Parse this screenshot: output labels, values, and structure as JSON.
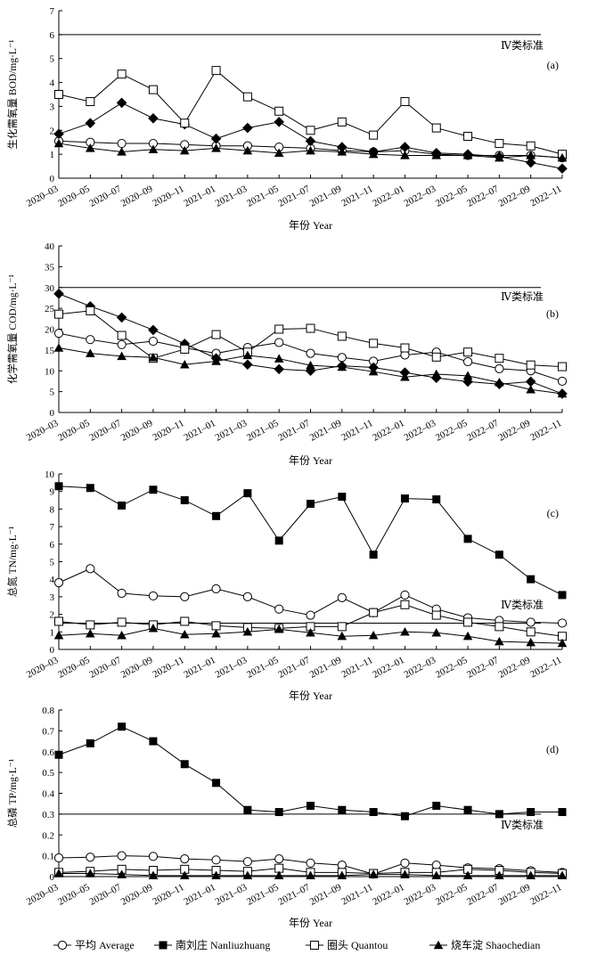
{
  "x_tick_labels": [
    "2020–03",
    "2020–05",
    "2020–07",
    "2020–09",
    "2020–11",
    "2021–01",
    "2021–03",
    "2021–05",
    "2021–07",
    "2021–09",
    "2021–11",
    "2022–01",
    "2022–03",
    "2022–05",
    "2022–07",
    "2022–09",
    "2022–11"
  ],
  "legend": [
    {
      "label": "平均 Average",
      "marker": "circle-open"
    },
    {
      "label": "南刘庄 Nanliuzhuang",
      "marker": "square-filled"
    },
    {
      "label": "圈头 Quantou",
      "marker": "square-open"
    },
    {
      "label": "烧车淀 Shaochedian",
      "marker": "triangle-filled"
    }
  ],
  "chart_data": [
    {
      "type": "line",
      "panel": "(a)",
      "xlabel": "年份 Year",
      "ylabel": "生化需氧量 BOD/mg·L⁻¹",
      "ylim": [
        0,
        7
      ],
      "yticks": [
        0,
        1,
        2,
        3,
        4,
        5,
        6,
        7
      ],
      "x": [
        "2020–03",
        "2020–05",
        "2020–07",
        "2020–09",
        "2020–11",
        "2021–01",
        "2021–03",
        "2021–05",
        "2021–07",
        "2021–09",
        "2021–11",
        "2022–01",
        "2022–03",
        "2022–05",
        "2022–07",
        "2022–09",
        "2022–11"
      ],
      "standard": {
        "label": "Ⅳ类标准",
        "value": 6
      },
      "series": [
        {
          "name": "平均 Average",
          "values": [
            1.55,
            1.5,
            1.45,
            1.45,
            1.4,
            1.35,
            1.35,
            1.3,
            1.25,
            1.15,
            1.1,
            1.15,
            1.0,
            0.95,
            0.95,
            0.95,
            0.85
          ]
        },
        {
          "name": "南刘庄 Nanliuzhuang",
          "values": [
            1.85,
            2.3,
            3.15,
            2.5,
            2.25,
            1.65,
            2.1,
            2.35,
            1.55,
            1.3,
            1.1,
            1.3,
            1.05,
            1.0,
            0.9,
            0.65,
            0.4
          ]
        },
        {
          "name": "圈头 Quantou",
          "values": [
            3.5,
            3.2,
            4.35,
            3.7,
            2.3,
            4.5,
            3.4,
            2.8,
            2.0,
            2.35,
            1.8,
            3.2,
            2.1,
            1.75,
            1.45,
            1.35,
            1.0
          ]
        },
        {
          "name": "烧车淀 Shaochedian",
          "values": [
            1.45,
            1.25,
            1.1,
            1.2,
            1.15,
            1.25,
            1.15,
            1.05,
            1.15,
            1.1,
            1.0,
            0.95,
            0.95,
            0.95,
            0.85,
            0.95,
            0.85
          ]
        }
      ]
    },
    {
      "type": "line",
      "panel": "(b)",
      "xlabel": "年份 Year",
      "ylabel": "化学需氧量 COD/mg·L⁻¹",
      "ylim": [
        0,
        40
      ],
      "yticks": [
        0,
        5,
        10,
        15,
        20,
        25,
        30,
        35,
        40
      ],
      "x": [
        "2020–03",
        "2020–05",
        "2020–07",
        "2020–09",
        "2020–11",
        "2021–01",
        "2021–03",
        "2021–05",
        "2021–07",
        "2021–09",
        "2021–11",
        "2022–01",
        "2022–03",
        "2022–05",
        "2022–07",
        "2022–09",
        "2022–11"
      ],
      "standard": {
        "label": "Ⅳ类标准",
        "value": 30
      },
      "series": [
        {
          "name": "平均 Average",
          "values": [
            19.0,
            17.5,
            16.3,
            17.1,
            15.5,
            14.2,
            15.6,
            16.8,
            14.2,
            13.2,
            12.3,
            13.8,
            14.5,
            12.2,
            10.5,
            10.0,
            7.5
          ]
        },
        {
          "name": "南刘庄 Nanliuzhuang",
          "values": [
            28.5,
            25.5,
            22.8,
            19.8,
            16.5,
            13.0,
            11.5,
            10.4,
            10.0,
            11.2,
            10.8,
            9.6,
            8.3,
            7.4,
            6.8,
            7.4,
            4.5
          ]
        },
        {
          "name": "圈头 Quantou",
          "values": [
            23.6,
            24.4,
            18.5,
            13.0,
            15.2,
            18.7,
            14.5,
            20.0,
            20.2,
            18.3,
            16.6,
            15.5,
            13.3,
            14.5,
            13.0,
            11.4,
            11.0
          ]
        },
        {
          "name": "烧车淀 Shaochedian",
          "values": [
            15.5,
            14.2,
            13.5,
            13.2,
            11.5,
            12.3,
            13.7,
            12.9,
            11.3,
            10.9,
            9.8,
            8.5,
            9.2,
            8.8,
            7.2,
            5.5,
            4.5
          ]
        }
      ]
    },
    {
      "type": "line",
      "panel": "(c)",
      "xlabel": "年份 Year",
      "ylabel": "总氮 TN/mg·L⁻¹",
      "ylim": [
        0,
        10
      ],
      "yticks": [
        0,
        1,
        2,
        3,
        4,
        5,
        6,
        7,
        8,
        9,
        10
      ],
      "x": [
        "2020–03",
        "2020–05",
        "2020–07",
        "2020–09",
        "2020–11",
        "2021–01",
        "2021–03",
        "2021–05",
        "2021–07",
        "2021–09",
        "2021–11",
        "2022–01",
        "2022–03",
        "2022–05",
        "2022–07",
        "2022–09",
        "2022–11"
      ],
      "standard": {
        "label": "Ⅳ类标准",
        "value": 1.5
      },
      "series": [
        {
          "name": "平均 Average",
          "values": [
            3.8,
            4.6,
            3.2,
            3.05,
            3.0,
            3.45,
            3.0,
            2.3,
            1.95,
            2.95,
            2.1,
            3.1,
            2.3,
            1.8,
            1.65,
            1.55,
            1.5
          ]
        },
        {
          "name": "南刘庄 Nanliuzhuang",
          "values": [
            9.3,
            9.2,
            8.2,
            9.1,
            8.5,
            7.6,
            8.9,
            6.2,
            8.3,
            8.7,
            5.4,
            8.6,
            8.55,
            6.3,
            5.4,
            4.0,
            3.1
          ]
        },
        {
          "name": "圈头 Quantou",
          "values": [
            1.6,
            1.4,
            1.55,
            1.4,
            1.6,
            1.35,
            1.25,
            1.2,
            1.3,
            1.3,
            2.1,
            2.55,
            1.95,
            1.55,
            1.3,
            1.0,
            0.75
          ]
        },
        {
          "name": "烧车淀 Shaochedian",
          "values": [
            0.8,
            0.9,
            0.8,
            1.2,
            0.85,
            0.9,
            1.0,
            1.15,
            0.95,
            0.75,
            0.8,
            1.0,
            0.95,
            0.75,
            0.45,
            0.4,
            0.35
          ]
        }
      ]
    },
    {
      "type": "line",
      "panel": "(d)",
      "xlabel": "年份 Year",
      "ylabel": "总磷 TP/mg·L⁻¹",
      "ylim": [
        0,
        0.8
      ],
      "yticks": [
        "0",
        "0.1",
        "0.2",
        "0.3",
        "0.4",
        "0.5",
        "0.6",
        "0.7",
        "0.8"
      ],
      "x": [
        "2020–03",
        "2020–05",
        "2020–07",
        "2020–09",
        "2020–11",
        "2021–01",
        "2021–03",
        "2021–05",
        "2021–07",
        "2021–09",
        "2021–11",
        "2022–01",
        "2022–03",
        "2022–05",
        "2022–07",
        "2022–09",
        "2022–11"
      ],
      "standard": {
        "label": "Ⅳ类标准",
        "value": 0.3
      },
      "series": [
        {
          "name": "平均 Average",
          "values": [
            0.09,
            0.093,
            0.1,
            0.097,
            0.085,
            0.08,
            0.072,
            0.085,
            0.065,
            0.055,
            0.012,
            0.065,
            0.055,
            0.042,
            0.038,
            0.028,
            0.02
          ]
        },
        {
          "name": "南刘庄 Nanliuzhuang",
          "values": [
            0.585,
            0.64,
            0.72,
            0.65,
            0.54,
            0.45,
            0.32,
            0.31,
            0.34,
            0.32,
            0.31,
            0.29,
            0.34,
            0.32,
            0.3,
            0.31,
            0.31
          ]
        },
        {
          "name": "圈头 Quantou",
          "values": [
            0.02,
            0.025,
            0.035,
            0.03,
            0.035,
            0.03,
            0.025,
            0.04,
            0.02,
            0.02,
            0.015,
            0.02,
            0.02,
            0.035,
            0.03,
            0.02,
            0.015
          ]
        },
        {
          "name": "烧车淀 Shaochedian",
          "values": [
            0.015,
            0.015,
            0.01,
            0.005,
            0.005,
            0.005,
            0.005,
            0.005,
            0.005,
            0.005,
            0.01,
            0.01,
            0.005,
            0.005,
            0.005,
            0.005,
            0.005
          ]
        }
      ]
    }
  ]
}
